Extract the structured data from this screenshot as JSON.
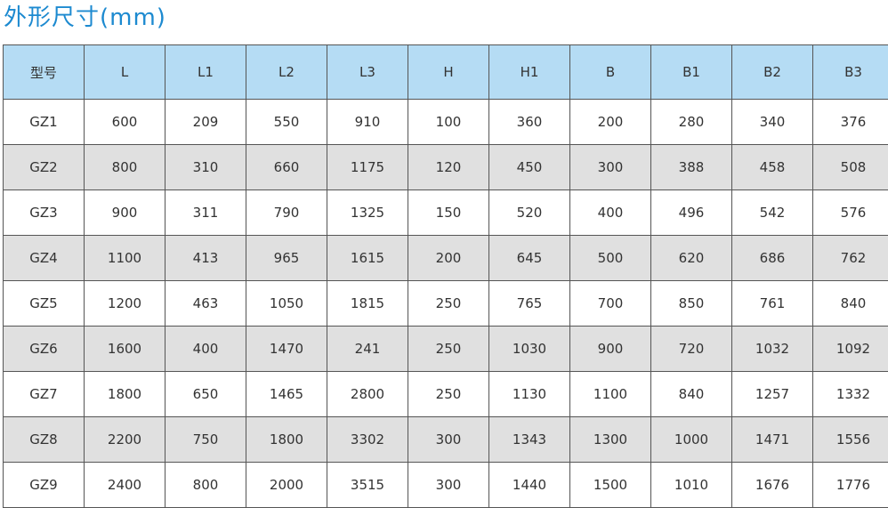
{
  "title": "外形尺寸(mm)",
  "table": {
    "headers": [
      "型号",
      "L",
      "L1",
      "L2",
      "L3",
      "H",
      "H1",
      "B",
      "B1",
      "B2",
      "B3"
    ],
    "rows": [
      [
        "GZ1",
        "600",
        "209",
        "550",
        "910",
        "100",
        "360",
        "200",
        "280",
        "340",
        "376"
      ],
      [
        "GZ2",
        "800",
        "310",
        "660",
        "1175",
        "120",
        "450",
        "300",
        "388",
        "458",
        "508"
      ],
      [
        "GZ3",
        "900",
        "311",
        "790",
        "1325",
        "150",
        "520",
        "400",
        "496",
        "542",
        "576"
      ],
      [
        "GZ4",
        "1100",
        "413",
        "965",
        "1615",
        "200",
        "645",
        "500",
        "620",
        "686",
        "762"
      ],
      [
        "GZ5",
        "1200",
        "463",
        "1050",
        "1815",
        "250",
        "765",
        "700",
        "850",
        "761",
        "840"
      ],
      [
        "GZ6",
        "1600",
        "400",
        "1470",
        "241",
        "250",
        "1030",
        "900",
        "720",
        "1032",
        "1092"
      ],
      [
        "GZ7",
        "1800",
        "650",
        "1465",
        "2800",
        "250",
        "1130",
        "1100",
        "840",
        "1257",
        "1332"
      ],
      [
        "GZ8",
        "2200",
        "750",
        "1800",
        "3302",
        "300",
        "1343",
        "1300",
        "1000",
        "1471",
        "1556"
      ],
      [
        "GZ9",
        "2400",
        "800",
        "2000",
        "3515",
        "300",
        "1440",
        "1500",
        "1010",
        "1676",
        "1776"
      ]
    ]
  },
  "colors": {
    "title": "#1d8ad0",
    "header_bg": "#b5dcf4",
    "alt_row_bg": "#e0e0e0"
  }
}
